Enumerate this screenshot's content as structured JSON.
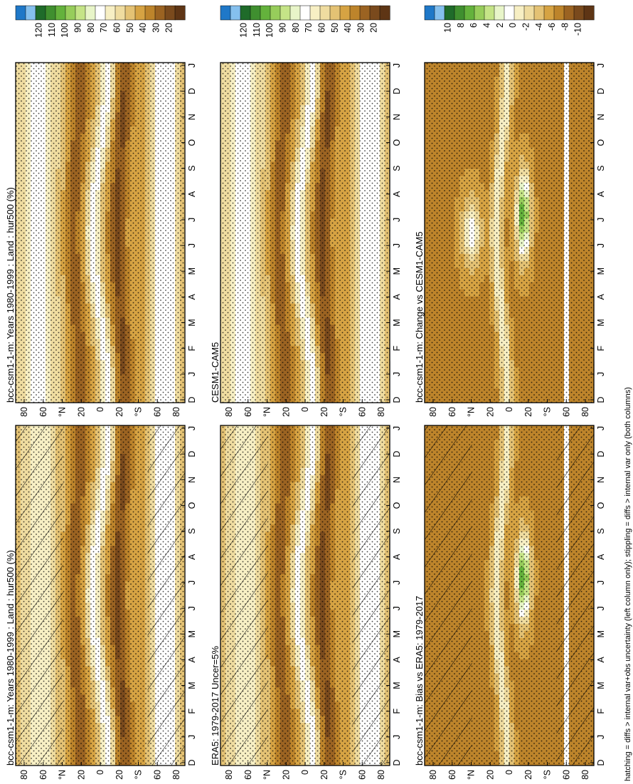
{
  "footer": "hatching = diffs > internal var+obs uncertainty (left column only); stippling = diffs > internal var only (both columns)",
  "lat_ticks": [
    "80",
    "60",
    "°N",
    "20",
    "0",
    "20",
    "°S",
    "60",
    "80"
  ],
  "month_ticks": [
    "D",
    "J",
    "F",
    "M",
    "A",
    "M",
    "J",
    "J",
    "A",
    "S",
    "O",
    "N",
    "D",
    "J"
  ],
  "colorbar_abs": [
    "120",
    "110",
    "100",
    "90",
    "80",
    "70",
    "60",
    "50",
    "40",
    "30",
    "20"
  ],
  "colorbar_diff": [
    "10",
    "8",
    "6",
    "4",
    "2",
    "0",
    "-2",
    "-4",
    "-6",
    "-8",
    "-10"
  ],
  "colors_abs": [
    "#1f78c8",
    "#85c0ee",
    "#1f6b2a",
    "#3f8f2f",
    "#64b23c",
    "#97cd5b",
    "#c5e487",
    "#e8f5c9",
    "#ffffff",
    "#f7efc4",
    "#efdca0",
    "#e4c274",
    "#d6a343",
    "#bd842b",
    "#9b6322",
    "#7a4a1d",
    "#5e3515"
  ],
  "colors_diff": [
    "#1f78c8",
    "#85c0ee",
    "#1f6b2a",
    "#3f8f2f",
    "#64b23c",
    "#97cd5b",
    "#c5e487",
    "#e8f5c9",
    "#ffffff",
    "#f7efc4",
    "#efdca0",
    "#e4c274",
    "#d6a343",
    "#bd842b",
    "#9b6322",
    "#7a4a1d",
    "#5e3515"
  ],
  "panels": [
    {
      "id": "p1",
      "title": "bcc-csm1-1-m: Years 1980-1999 : Land : hur500 (%)",
      "scale": "abs",
      "hatch": true
    },
    {
      "id": "p2",
      "title": "bcc-csm1-1-m: Years 1980-1999 : Land : hur500 (%)",
      "scale": "abs",
      "hatch": false
    },
    {
      "id": "p3",
      "title": "ERA5: 1979-2017 Uncer=5%",
      "scale": "abs",
      "hatch": true
    },
    {
      "id": "p4",
      "title": "CESM1-CAM5",
      "scale": "abs",
      "hatch": false
    },
    {
      "id": "p5",
      "title": "bcc-csm1-1-m: Bias vs ERA5: 1979-2017",
      "scale": "diff",
      "hatch": true
    },
    {
      "id": "p6",
      "title": "bcc-csm1-1-m: Change vs CESM1-CAM5",
      "scale": "diff",
      "hatch": false
    }
  ],
  "chart_data": [
    {
      "type": "heatmap",
      "title": "bcc-csm1-1-m: Years 1980-1999 : Land : hur500 (%)",
      "x": [
        "D",
        "J",
        "F",
        "M",
        "A",
        "M",
        "J",
        "J",
        "A",
        "S",
        "O",
        "N",
        "D",
        "J"
      ],
      "y": [
        "80",
        "60",
        "°N",
        "20",
        "0",
        "20",
        "°S",
        "60",
        "80"
      ],
      "colorbar": [
        120,
        110,
        100,
        90,
        80,
        70,
        60,
        50,
        40,
        30,
        20
      ]
    },
    {
      "type": "heatmap",
      "title": "bcc-csm1-1-m: Years 1980-1999 : Land : hur500 (%)",
      "x": [
        "D",
        "J",
        "F",
        "M",
        "A",
        "M",
        "J",
        "J",
        "A",
        "S",
        "O",
        "N",
        "D",
        "J"
      ],
      "y": [
        "80",
        "60",
        "°N",
        "20",
        "0",
        "20",
        "°S",
        "60",
        "80"
      ],
      "colorbar": [
        120,
        110,
        100,
        90,
        80,
        70,
        60,
        50,
        40,
        30,
        20
      ]
    },
    {
      "type": "heatmap",
      "title": "ERA5: 1979-2017 Uncer=5%",
      "x": [
        "D",
        "J",
        "F",
        "M",
        "A",
        "M",
        "J",
        "J",
        "A",
        "S",
        "O",
        "N",
        "D",
        "J"
      ],
      "y": [
        "80",
        "60",
        "°N",
        "20",
        "0",
        "20",
        "°S",
        "60",
        "80"
      ],
      "colorbar": [
        120,
        110,
        100,
        90,
        80,
        70,
        60,
        50,
        40,
        30,
        20
      ]
    },
    {
      "type": "heatmap",
      "title": "CESM1-CAM5",
      "x": [
        "D",
        "J",
        "F",
        "M",
        "A",
        "M",
        "J",
        "J",
        "A",
        "S",
        "O",
        "N",
        "D",
        "J"
      ],
      "y": [
        "80",
        "60",
        "°N",
        "20",
        "0",
        "20",
        "°S",
        "60",
        "80"
      ],
      "colorbar": [
        120,
        110,
        100,
        90,
        80,
        70,
        60,
        50,
        40,
        30,
        20
      ]
    },
    {
      "type": "heatmap",
      "title": "bcc-csm1-1-m: Bias vs ERA5: 1979-2017",
      "x": [
        "D",
        "J",
        "F",
        "M",
        "A",
        "M",
        "J",
        "J",
        "A",
        "S",
        "O",
        "N",
        "D",
        "J"
      ],
      "y": [
        "80",
        "60",
        "°N",
        "20",
        "0",
        "20",
        "°S",
        "60",
        "80"
      ],
      "colorbar": [
        10,
        8,
        6,
        4,
        2,
        0,
        -2,
        -4,
        -6,
        -8,
        -10
      ]
    },
    {
      "type": "heatmap",
      "title": "bcc-csm1-1-m: Change vs CESM1-CAM5",
      "x": [
        "D",
        "J",
        "F",
        "M",
        "A",
        "M",
        "J",
        "J",
        "A",
        "S",
        "O",
        "N",
        "D",
        "J"
      ],
      "y": [
        "80",
        "60",
        "°N",
        "20",
        "0",
        "20",
        "°S",
        "60",
        "80"
      ],
      "colorbar": [
        10,
        8,
        6,
        4,
        2,
        0,
        -2,
        -4,
        -6,
        -8,
        -10
      ]
    }
  ]
}
